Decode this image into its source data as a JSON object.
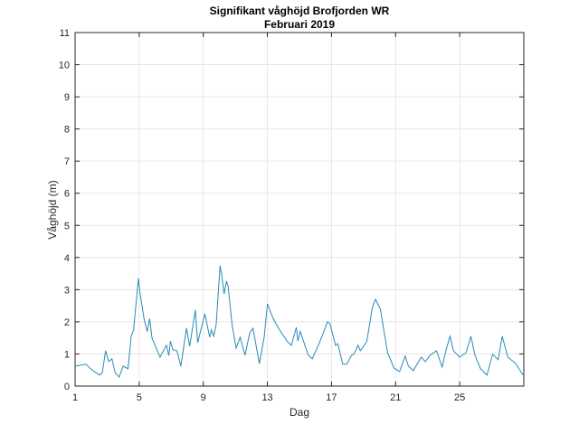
{
  "chart_data": {
    "type": "line",
    "title": "Signifikant våghöjd Brofjorden WR",
    "subtitle": "Februari 2019",
    "xlabel": "Dag",
    "ylabel": "Våghöjd (m)",
    "xlim": [
      1,
      29
    ],
    "ylim": [
      0,
      11
    ],
    "xticks": [
      1,
      5,
      9,
      13,
      17,
      21,
      25
    ],
    "yticks": [
      0,
      1,
      2,
      3,
      4,
      5,
      6,
      7,
      8,
      9,
      10,
      11
    ],
    "grid": true,
    "line_color": "#2a8bb8",
    "series": [
      {
        "x": [
          1.0,
          1.67,
          1.96,
          2.52,
          2.7,
          2.9,
          3.1,
          3.3,
          3.5,
          3.75,
          4.0,
          4.3,
          4.5,
          4.65,
          4.8,
          4.95,
          5.05,
          5.3,
          5.5,
          5.65,
          5.8,
          6.3,
          6.7,
          6.85,
          6.95,
          7.1,
          7.35,
          7.6,
          7.95,
          8.15,
          8.5,
          8.65,
          9.1,
          9.4,
          9.5,
          9.65,
          9.8,
          10.05,
          10.15,
          10.3,
          10.45,
          10.55,
          10.8,
          11.05,
          11.3,
          11.6,
          11.9,
          12.1,
          12.5,
          12.8,
          13.0,
          13.35,
          13.75,
          14.25,
          14.5,
          14.8,
          14.9,
          15.05,
          15.55,
          15.8,
          16.15,
          16.45,
          16.75,
          16.9,
          17.25,
          17.4,
          17.7,
          17.95,
          18.25,
          18.4,
          18.65,
          18.8,
          19.2,
          19.55,
          19.75,
          20.05,
          20.2,
          20.5,
          20.9,
          21.25,
          21.6,
          21.8,
          22.1,
          22.6,
          22.85,
          23.15,
          23.55,
          23.9,
          24.15,
          24.4,
          24.6,
          25.0,
          25.4,
          25.7,
          25.95,
          26.3,
          26.7,
          27.05,
          27.4,
          27.65,
          28.0,
          28.5,
          28.95
        ],
        "y": [
          0.62,
          0.68,
          0.54,
          0.34,
          0.42,
          1.1,
          0.76,
          0.85,
          0.42,
          0.28,
          0.62,
          0.54,
          1.55,
          1.75,
          2.55,
          3.35,
          2.9,
          2.1,
          1.7,
          2.1,
          1.5,
          0.9,
          1.27,
          0.95,
          1.4,
          1.13,
          1.1,
          0.62,
          1.8,
          1.24,
          2.37,
          1.35,
          2.25,
          1.52,
          1.75,
          1.55,
          1.9,
          3.75,
          3.44,
          2.87,
          3.27,
          3.1,
          1.9,
          1.18,
          1.52,
          0.96,
          1.66,
          1.8,
          0.7,
          1.52,
          2.56,
          2.11,
          1.75,
          1.38,
          1.27,
          1.83,
          1.4,
          1.7,
          0.96,
          0.85,
          1.24,
          1.6,
          2.0,
          1.94,
          1.27,
          1.32,
          0.68,
          0.68,
          0.96,
          0.99,
          1.27,
          1.1,
          1.38,
          2.45,
          2.7,
          2.39,
          1.94,
          1.04,
          0.56,
          0.45,
          0.93,
          0.62,
          0.48,
          0.9,
          0.76,
          0.96,
          1.1,
          0.59,
          1.13,
          1.55,
          1.1,
          0.9,
          1.04,
          1.55,
          0.96,
          0.54,
          0.34,
          0.99,
          0.82,
          1.55,
          0.9,
          0.7,
          0.34
        ]
      }
    ]
  }
}
